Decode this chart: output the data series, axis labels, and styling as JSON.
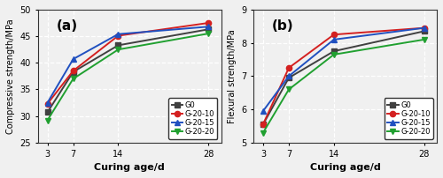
{
  "x": [
    3,
    7,
    14,
    28
  ],
  "compressive": {
    "G0": [
      30.7,
      38.3,
      43.3,
      46.3
    ],
    "G-20-10": [
      32.3,
      38.5,
      45.1,
      47.5
    ],
    "G-20-15": [
      32.5,
      40.7,
      45.4,
      46.8
    ],
    "G-20-20": [
      29.2,
      37.0,
      42.5,
      45.5
    ]
  },
  "flexural": {
    "G0": [
      5.55,
      6.95,
      7.75,
      8.35
    ],
    "G-20-10": [
      5.55,
      7.25,
      8.25,
      8.45
    ],
    "G-20-15": [
      5.95,
      7.0,
      8.1,
      8.45
    ],
    "G-20-20": [
      5.3,
      6.6,
      7.65,
      8.1
    ]
  },
  "colors": {
    "G0": "#404040",
    "G-20-10": "#d42020",
    "G-20-15": "#2050c0",
    "G-20-20": "#20a030"
  },
  "markers": {
    "G0": "s",
    "G-20-10": "o",
    "G-20-15": "^",
    "G-20-20": "v"
  },
  "compressive_ylim": [
    25,
    50
  ],
  "compressive_yticks": [
    25,
    30,
    35,
    40,
    45,
    50
  ],
  "flexural_ylim": [
    5,
    9
  ],
  "flexural_yticks": [
    5,
    6,
    7,
    8,
    9
  ],
  "xlabel": "Curing age/d",
  "ylabel_a": "Compressive strength/MPa",
  "ylabel_b": "Flexural strength/MPa",
  "label_a": "(a)",
  "label_b": "(b)",
  "bg_color": "#f0f0f0",
  "plot_bg": "#f0f0f0",
  "grid_color": "#ffffff",
  "linewidth": 1.4,
  "markersize": 4.5
}
